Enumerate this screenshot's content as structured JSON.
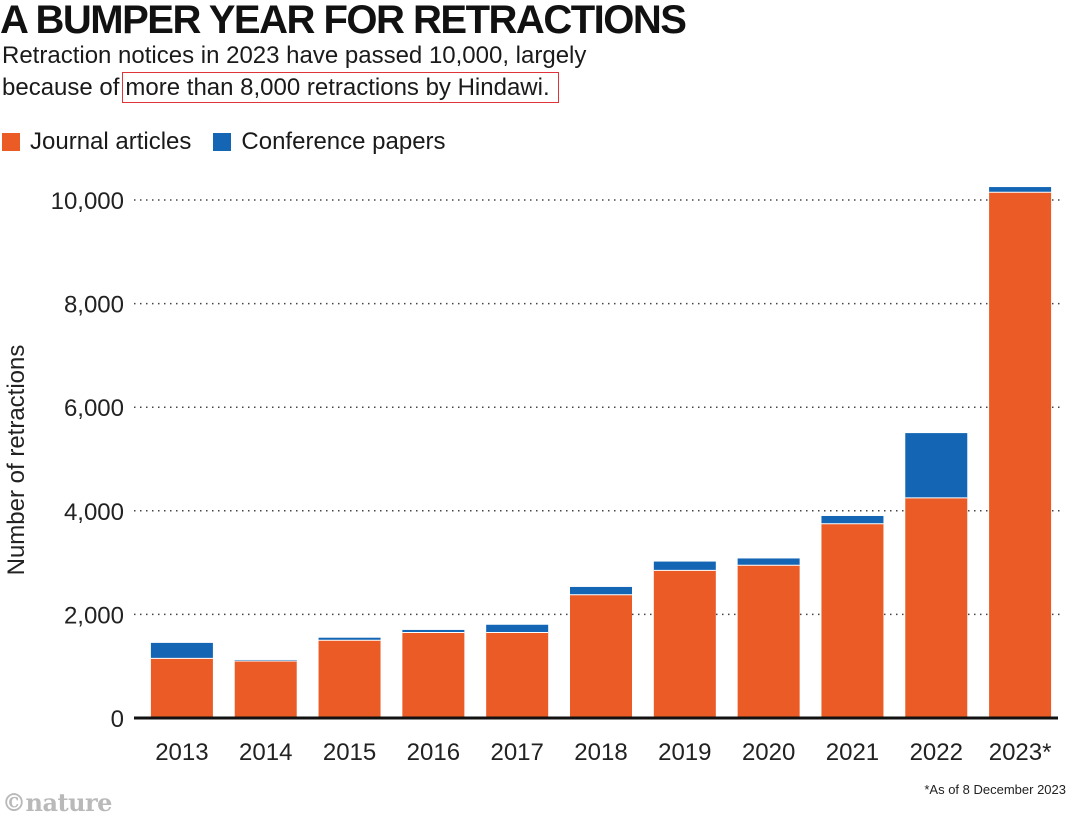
{
  "header": {
    "title": "A BUMPER YEAR FOR RETRACTIONS",
    "subtitle_part1": "Retraction notices in 2023 have passed 10,000, largely",
    "subtitle_part2": "because of",
    "subtitle_highlight": "more than 8,000 retractions by Hindawi."
  },
  "footer": {
    "note": "*As of 8 December 2023",
    "logo": "©nature"
  },
  "chart_data": {
    "type": "bar",
    "stacked": true,
    "ylabel": "Number of retractions",
    "xlabel": "",
    "ylim": [
      0,
      10300
    ],
    "yticks": [
      0,
      2000,
      4000,
      6000,
      8000,
      10000
    ],
    "ytick_labels": [
      "0",
      "2,000",
      "4,000",
      "6,000",
      "8,000",
      "10,000"
    ],
    "grid": "horizontal-dotted",
    "legend": "top-left",
    "categories": [
      "2013",
      "2014",
      "2015",
      "2016",
      "2017",
      "2018",
      "2019",
      "2020",
      "2021",
      "2022",
      "2023*"
    ],
    "series": [
      {
        "name": "Journal articles",
        "color": "#ea5b25",
        "values": [
          1150,
          1100,
          1500,
          1650,
          1650,
          2380,
          2850,
          2950,
          3750,
          4250,
          10150
        ]
      },
      {
        "name": "Conference papers",
        "color": "#1466b4",
        "values": [
          300,
          20,
          50,
          50,
          150,
          150,
          170,
          130,
          150,
          1250,
          100
        ]
      }
    ]
  }
}
